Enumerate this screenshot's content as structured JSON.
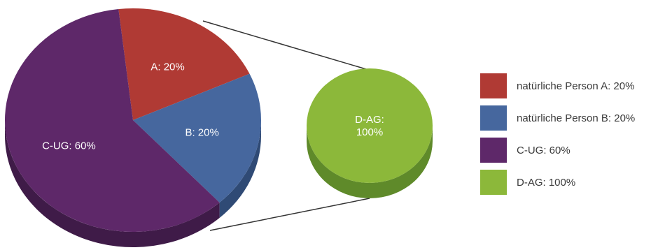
{
  "chart_data": [
    {
      "type": "pie",
      "style": "3d",
      "slices": [
        {
          "label": "A: 20%",
          "value": 20,
          "color": "#b03a34",
          "side_color": "#7d2a25"
        },
        {
          "label": "B: 20%",
          "value": 20,
          "color": "#46679e",
          "side_color": "#2f4a75"
        },
        {
          "label": "C-UG: 60%",
          "value": 60,
          "color": "#5e2869",
          "side_color": "#3f1b48"
        }
      ]
    },
    {
      "type": "pie",
      "style": "3d",
      "slices": [
        {
          "label": "D-AG:\n100%",
          "value": 100,
          "color": "#8cb83a",
          "side_color": "#5f8a2a"
        }
      ]
    }
  ],
  "legend": [
    {
      "label": "natürliche Person A: 20%",
      "color": "#b03a34"
    },
    {
      "label": "natürliche Person B: 20%",
      "color": "#46679e"
    },
    {
      "label": "C-UG: 60%",
      "color": "#5e2869"
    },
    {
      "label": "D-AG: 100%",
      "color": "#8cb83a"
    }
  ],
  "connector_color": "#333333"
}
